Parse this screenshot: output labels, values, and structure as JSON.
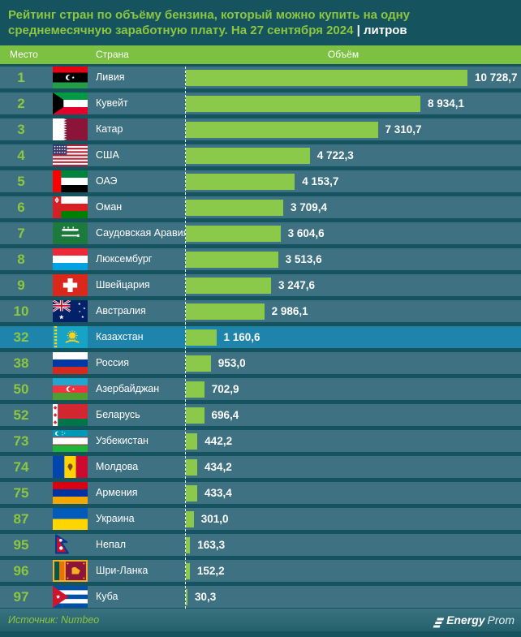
{
  "title": {
    "main": "Рейтинг стран по объёму бензина, который можно купить на одну среднемесячную заработную плату. На 27 сентября 2024",
    "suffix": "| литров"
  },
  "columns": {
    "place": "Место",
    "country": "Страна",
    "volume": "Объём"
  },
  "footer": {
    "source": "Источник: Numbeo",
    "brand_bold": "Energy",
    "brand_light": "Prom"
  },
  "colors": {
    "accent_green": "#8dc63f",
    "bar_green": "#8bc94a",
    "header_band": "#7cc142",
    "row_teal": "#3e7181",
    "highlight_row": "#1e84ab",
    "background": "#15535f"
  },
  "chart_data": {
    "type": "bar",
    "title": "Рейтинг стран по объёму бензина, который можно купить на одну среднемесячную заработную плату. На 27 сентября 2024",
    "unit": "литров",
    "xlabel": "Объём",
    "xlim": [
      0,
      10728.7
    ],
    "legend": "none",
    "rows": [
      {
        "rank": "1",
        "country": "Ливия",
        "value": 10728.7,
        "value_label": "10 728,7",
        "flag": "ly",
        "highlight": false
      },
      {
        "rank": "2",
        "country": "Кувейт",
        "value": 8934.1,
        "value_label": "8 934,1",
        "flag": "kw",
        "highlight": false
      },
      {
        "rank": "3",
        "country": "Катар",
        "value": 7310.7,
        "value_label": "7 310,7",
        "flag": "qa",
        "highlight": false
      },
      {
        "rank": "4",
        "country": "США",
        "value": 4722.3,
        "value_label": "4 722,3",
        "flag": "us",
        "highlight": false
      },
      {
        "rank": "5",
        "country": "ОАЭ",
        "value": 4153.7,
        "value_label": "4 153,7",
        "flag": "ae",
        "highlight": false
      },
      {
        "rank": "6",
        "country": "Оман",
        "value": 3709.4,
        "value_label": "3 709,4",
        "flag": "om",
        "highlight": false
      },
      {
        "rank": "7",
        "country": "Саудовская Аравия",
        "value": 3604.6,
        "value_label": "3 604,6",
        "flag": "sa",
        "highlight": false
      },
      {
        "rank": "8",
        "country": "Люксембург",
        "value": 3513.6,
        "value_label": "3 513,6",
        "flag": "lu",
        "highlight": false
      },
      {
        "rank": "9",
        "country": "Швейцария",
        "value": 3247.6,
        "value_label": "3 247,6",
        "flag": "ch",
        "highlight": false
      },
      {
        "rank": "10",
        "country": "Австралия",
        "value": 2986.1,
        "value_label": "2 986,1",
        "flag": "au",
        "highlight": false
      },
      {
        "rank": "32",
        "country": "Казахстан",
        "value": 1160.6,
        "value_label": "1 160,6",
        "flag": "kz",
        "highlight": true
      },
      {
        "rank": "38",
        "country": "Россия",
        "value": 953.0,
        "value_label": "953,0",
        "flag": "ru",
        "highlight": false
      },
      {
        "rank": "50",
        "country": "Азербайджан",
        "value": 702.9,
        "value_label": "702,9",
        "flag": "az",
        "highlight": false
      },
      {
        "rank": "52",
        "country": "Беларусь",
        "value": 696.4,
        "value_label": "696,4",
        "flag": "by",
        "highlight": false
      },
      {
        "rank": "73",
        "country": "Узбекистан",
        "value": 442.2,
        "value_label": "442,2",
        "flag": "uz",
        "highlight": false
      },
      {
        "rank": "74",
        "country": "Молдова",
        "value": 434.2,
        "value_label": "434,2",
        "flag": "md",
        "highlight": false
      },
      {
        "rank": "75",
        "country": "Армения",
        "value": 433.4,
        "value_label": "433,4",
        "flag": "am",
        "highlight": false
      },
      {
        "rank": "87",
        "country": "Украина",
        "value": 301.0,
        "value_label": "301,0",
        "flag": "ua",
        "highlight": false
      },
      {
        "rank": "95",
        "country": "Непал",
        "value": 163.3,
        "value_label": "163,3",
        "flag": "np",
        "highlight": false
      },
      {
        "rank": "96",
        "country": "Шри-Ланка",
        "value": 152.2,
        "value_label": "152,2",
        "flag": "lk",
        "highlight": false
      },
      {
        "rank": "97",
        "country": "Куба",
        "value": 30.3,
        "value_label": "30,3",
        "flag": "cu",
        "highlight": false
      }
    ]
  }
}
